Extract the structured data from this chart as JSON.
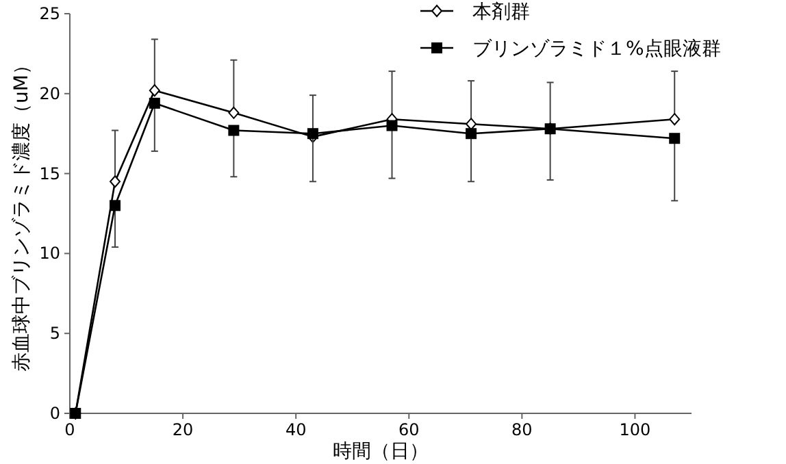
{
  "chart_data": {
    "type": "line",
    "xlabel": "時間（日）",
    "ylabel": "赤血球中ブリンゾラミド濃度（uM）",
    "xlim": [
      0,
      110
    ],
    "xticks": [
      0,
      20,
      40,
      60,
      80,
      100
    ],
    "ylim": [
      0,
      25
    ],
    "yticks": [
      0,
      5,
      10,
      15,
      20,
      25
    ],
    "grid": false,
    "legend": "top right",
    "line_style": "solid",
    "series": [
      {
        "name": "本剤群",
        "color": "#000000",
        "marker": "diamond",
        "x": [
          1,
          8,
          15,
          29,
          43,
          57,
          71,
          85,
          107
        ],
        "values": [
          0,
          14.5,
          20.2,
          18.8,
          17.3,
          18.4,
          18.1,
          17.8,
          18.4
        ],
        "errors": [
          null,
          [
            14.5,
            17.7
          ],
          [
            20.2,
            23.4
          ],
          [
            18.8,
            22.1
          ],
          [
            17.3,
            19.9
          ],
          [
            18.4,
            21.4
          ],
          [
            18.1,
            20.8
          ],
          [
            17.8,
            20.7
          ],
          [
            18.4,
            21.4
          ]
        ]
      },
      {
        "name": "ブリンゾラミド１%点眼液群",
        "color": "#000000",
        "marker": "square",
        "x": [
          1,
          8,
          15,
          29,
          43,
          57,
          71,
          85,
          107
        ],
        "values": [
          0,
          13.0,
          19.4,
          17.7,
          17.5,
          18.0,
          17.5,
          17.8,
          17.2
        ],
        "errors": [
          null,
          [
            10.4,
            13.0
          ],
          [
            16.4,
            19.4
          ],
          [
            14.8,
            17.7
          ],
          [
            14.5,
            17.5
          ],
          [
            14.7,
            18.0
          ],
          [
            14.5,
            17.5
          ],
          [
            14.6,
            17.8
          ],
          [
            13.3,
            17.2
          ]
        ]
      }
    ]
  }
}
